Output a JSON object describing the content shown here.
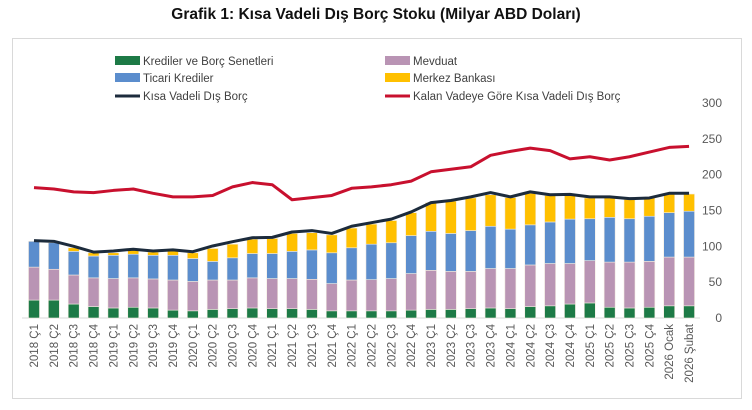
{
  "title": "Grafik 1: Kısa Vadeli Dış Borç Stoku (Milyar ABD Doları)",
  "chart_data": {
    "type": "bar",
    "stacked": true,
    "title": "Grafik 1: Kısa Vadeli Dış Borç Stoku (Milyar ABD Doları)",
    "xlabel": "",
    "ylabel": "",
    "ylim": [
      0,
      300
    ],
    "yticks": [
      0,
      50,
      100,
      150,
      200,
      250,
      300
    ],
    "y_axis_side": "right",
    "grid": false,
    "legend": "top",
    "categories": [
      "2018 Ç1",
      "2018 Ç2",
      "2018 Ç3",
      "2018 Ç4",
      "2019 Ç1",
      "2019 Ç2",
      "2019 Ç3",
      "2019 Ç4",
      "2020 Ç1",
      "2020 Ç2",
      "2020 Ç3",
      "2020 Ç4",
      "2021 Ç1",
      "2021 Ç2",
      "2021 Ç3",
      "2021 Ç4",
      "2022 Ç1",
      "2022 Ç2",
      "2022 Ç3",
      "2022 Ç4",
      "2023 Ç1",
      "2023 Ç2",
      "2023 Ç3",
      "2023 Ç4",
      "2024 Ç1",
      "2024 Ç2",
      "2024 Ç3",
      "2024 Ç4",
      "2025 Ç1",
      "2025 Ç2",
      "2025 Ç3",
      "2025 Ç4",
      "2026 Ocak",
      "2026 Şubat"
    ],
    "series": [
      {
        "name": "Krediler ve Borç Senetleri",
        "kind": "bar",
        "color": "#1d7a46",
        "values": [
          25,
          25,
          19.5,
          16,
          14,
          15,
          14,
          11,
          10,
          12,
          13,
          14,
          13,
          13,
          12,
          10,
          10,
          10,
          10,
          11,
          12,
          12,
          13,
          14,
          13,
          16,
          17,
          19.5,
          21,
          15,
          14,
          15,
          17,
          17
        ]
      },
      {
        "name": "Mevduat",
        "kind": "bar",
        "color": "#b994b4",
        "values": [
          46,
          43,
          40.5,
          40,
          41,
          41,
          40.5,
          42,
          41,
          41,
          40,
          42,
          42,
          42,
          42,
          38,
          43,
          43.5,
          45,
          51,
          54.5,
          53,
          52,
          55,
          56,
          58,
          59,
          56.5,
          59,
          63,
          64,
          64,
          68,
          68
        ]
      },
      {
        "name": "Ticari Krediler",
        "kind": "bar",
        "color": "#5b8dcd",
        "values": [
          36,
          37,
          33,
          30.5,
          32.5,
          33,
          33,
          34.5,
          32,
          26,
          31,
          34,
          35,
          38,
          41,
          43,
          45,
          49.5,
          50,
          53,
          54.5,
          53,
          57,
          59,
          55,
          56,
          58,
          62,
          58.5,
          62.5,
          60.5,
          63,
          62,
          64
        ]
      },
      {
        "name": "Merkez Bankası",
        "kind": "bar",
        "color": "#ffc000",
        "values": [
          0,
          0,
          5,
          4.5,
          3.5,
          5.5,
          4.5,
          6.5,
          8,
          18,
          19,
          20,
          21,
          25,
          24,
          25,
          27.5,
          28,
          31,
          32,
          40,
          45,
          45.5,
          44,
          44,
          44,
          37,
          33,
          29,
          27.5,
          27,
          26,
          26,
          24
        ]
      },
      {
        "name": "Kısa Vadeli Dış Borç",
        "kind": "line",
        "color": "#1c2b3c",
        "values": [
          108,
          107,
          100,
          92,
          93.5,
          96,
          93.5,
          95,
          92.5,
          100.5,
          106.5,
          112,
          112.5,
          120,
          122,
          118,
          128,
          133,
          138,
          148,
          161,
          164,
          169,
          175,
          169,
          176,
          172,
          172.5,
          169,
          169,
          166.5,
          167.5,
          174,
          174
        ]
      },
      {
        "name": "Kalan Vadeye Göre Kısa Vadeli Dış Borç",
        "kind": "line",
        "color": "#c8102e",
        "values": [
          182,
          180,
          176,
          175,
          178,
          180,
          174,
          169,
          169,
          171,
          183,
          189,
          186,
          165,
          168,
          171,
          181,
          183,
          186,
          191,
          204,
          207.5,
          211,
          227,
          232.5,
          237,
          233.5,
          222,
          225,
          220.5,
          225,
          231.5,
          238,
          239.5
        ]
      }
    ]
  }
}
